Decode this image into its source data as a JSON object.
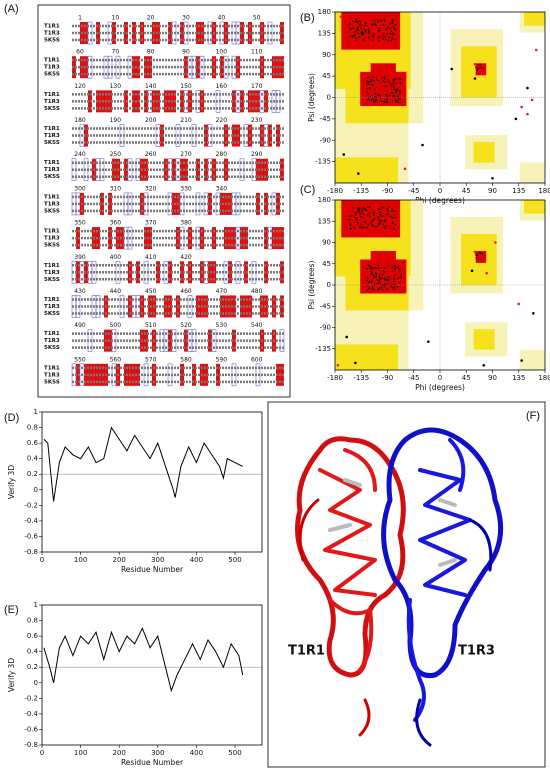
{
  "alignment": {
    "label": "(A)",
    "sequences": [
      "T1R1",
      "T1R3",
      "5K5S"
    ],
    "rulers": [
      [
        1,
        10,
        20,
        30,
        40,
        50
      ],
      [
        60,
        70,
        80,
        90,
        100,
        110
      ],
      [
        120,
        130,
        140,
        150,
        160,
        170
      ],
      [
        180,
        190,
        200,
        210,
        220,
        230
      ],
      [
        240,
        250,
        260,
        270,
        280,
        290
      ],
      [
        300,
        310,
        320,
        330,
        340
      ],
      [
        350,
        360,
        370,
        380
      ],
      [
        390,
        400,
        410,
        420
      ],
      [
        430,
        440,
        450,
        460,
        470,
        480
      ],
      [
        490,
        500,
        510,
        520,
        530,
        540
      ],
      [
        550,
        560,
        570,
        580,
        590,
        600
      ]
    ]
  },
  "structure": {
    "label": "(F)",
    "chain_a": "T1R1",
    "chain_b": "T1R3"
  },
  "chart_data": [
    {
      "type": "scatter",
      "label": "(B)",
      "x_label": "Phi (degrees)",
      "y_label": "Psi (degrees)",
      "xlim": [
        -180,
        180
      ],
      "ylim": [
        -180,
        180
      ],
      "xticks": [
        -180,
        -135,
        -90,
        -45,
        0,
        45,
        90,
        135,
        180
      ],
      "yticks": [
        -135,
        -90,
        -45,
        0,
        45,
        90,
        135,
        180
      ],
      "series": [
        {
          "name": "outliers",
          "color": "#e02020",
          "x": [
            165,
            140,
            150,
            60,
            -60,
            -170,
            158
          ],
          "y": [
            100,
            -20,
            -35,
            70,
            -150,
            170,
            -5
          ]
        },
        {
          "name": "residues",
          "color": "#000000",
          "x": [
            130,
            150,
            -30,
            90,
            -140,
            60,
            -165,
            20
          ],
          "y": [
            -45,
            20,
            -100,
            -170,
            -160,
            40,
            -120,
            60
          ]
        }
      ]
    },
    {
      "type": "scatter",
      "label": "(C)",
      "x_label": "Phi (degrees)",
      "y_label": "Psi (degrees)",
      "xlim": [
        -180,
        180
      ],
      "ylim": [
        -180,
        180
      ],
      "xticks": [
        -180,
        -135,
        -90,
        -45,
        0,
        45,
        90,
        135,
        180
      ],
      "yticks": [
        -135,
        -90,
        -45,
        0,
        45,
        90,
        135,
        180
      ],
      "series": [
        {
          "name": "outliers",
          "color": "#e02020",
          "x": [
            60,
            80,
            135,
            -175,
            95
          ],
          "y": [
            70,
            25,
            -40,
            -170,
            90
          ]
        },
        {
          "name": "residues",
          "color": "#000000",
          "x": [
            140,
            -20,
            75,
            -145,
            55,
            160,
            -160
          ],
          "y": [
            -160,
            -120,
            -170,
            -165,
            30,
            -60,
            -110
          ]
        }
      ]
    },
    {
      "type": "line",
      "label": "(D)",
      "x_label": "Residue Number",
      "y_label": "Verify 3D",
      "xlim": [
        0,
        570
      ],
      "ylim": [
        -0.8,
        1.0
      ],
      "xticks": [
        0,
        100,
        200,
        300,
        400,
        500
      ],
      "yticks": [
        -0.8,
        -0.6,
        -0.4,
        -0.2,
        0,
        0.2,
        0.4,
        0.6,
        0.8,
        1.0
      ],
      "reference": 0.2,
      "color": "#000000",
      "x": [
        5,
        15,
        30,
        45,
        60,
        80,
        100,
        120,
        140,
        160,
        180,
        200,
        220,
        240,
        260,
        280,
        300,
        320,
        340,
        345,
        360,
        380,
        400,
        420,
        440,
        460,
        470,
        480,
        500,
        520
      ],
      "values": [
        0.65,
        0.6,
        -0.15,
        0.35,
        0.55,
        0.45,
        0.4,
        0.55,
        0.35,
        0.4,
        0.8,
        0.65,
        0.5,
        0.7,
        0.55,
        0.4,
        0.6,
        0.3,
        0,
        -0.1,
        0.3,
        0.55,
        0.35,
        0.6,
        0.45,
        0.3,
        0.15,
        0.4,
        0.35,
        0.3
      ]
    },
    {
      "type": "line",
      "label": "(E)",
      "x_label": "Residue Number",
      "y_label": "Verify 3D",
      "xlim": [
        0,
        570
      ],
      "ylim": [
        -0.8,
        1.0
      ],
      "xticks": [
        0,
        100,
        200,
        300,
        400,
        500
      ],
      "yticks": [
        -0.8,
        -0.6,
        -0.4,
        -0.2,
        0,
        0.2,
        0.4,
        0.6,
        0.8,
        1.0
      ],
      "reference": 0.2,
      "color": "#000000",
      "x": [
        5,
        20,
        30,
        45,
        60,
        80,
        100,
        120,
        140,
        160,
        180,
        200,
        220,
        240,
        260,
        280,
        300,
        320,
        335,
        350,
        370,
        390,
        410,
        430,
        450,
        470,
        490,
        510,
        520
      ],
      "values": [
        0.45,
        0.2,
        0,
        0.45,
        0.6,
        0.35,
        0.6,
        0.5,
        0.65,
        0.3,
        0.65,
        0.4,
        0.6,
        0.5,
        0.7,
        0.45,
        0.6,
        0.2,
        -0.1,
        0.1,
        0.3,
        0.5,
        0.3,
        0.55,
        0.4,
        0.2,
        0.5,
        0.35,
        0.1
      ]
    }
  ]
}
